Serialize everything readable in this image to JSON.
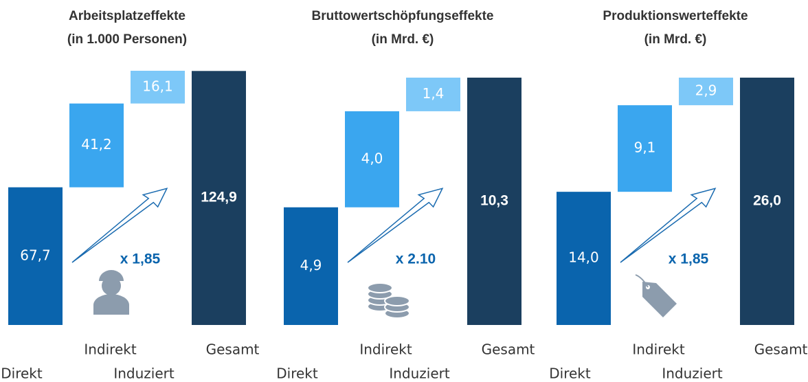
{
  "chart_data": [
    {
      "type": "waterfall",
      "title": "Arbeitsplatzeffekte",
      "subtitle": "(in 1.000 Personen)",
      "categories": [
        "Direkt",
        "Indirekt",
        "Induziert",
        "Gesamt"
      ],
      "values": [
        67.7,
        41.2,
        16.1,
        124.9
      ],
      "value_labels": [
        "67,7",
        "41,2",
        "16,1",
        "124,9"
      ],
      "colors": [
        "#0a64ad",
        "#3aa6ef",
        "#7dc8f8",
        "#1b3f5f"
      ],
      "annotation": "x 1,85"
    },
    {
      "type": "waterfall",
      "title": "Bruttowertschöpfungseffekte",
      "subtitle": "(in Mrd. €)",
      "categories": [
        "Direkt",
        "Indirekt",
        "Induziert",
        "Gesamt"
      ],
      "values": [
        4.9,
        4.0,
        1.4,
        10.3
      ],
      "value_labels": [
        "4,9",
        "4,0",
        "1,4",
        "10,3"
      ],
      "colors": [
        "#0a64ad",
        "#3aa6ef",
        "#7dc8f8",
        "#1b3f5f"
      ],
      "annotation": "x 2.10"
    },
    {
      "type": "waterfall",
      "title": "Produktionswerteffekte",
      "subtitle": "(in Mrd. €)",
      "categories": [
        "Direkt",
        "Indirekt",
        "Induziert",
        "Gesamt"
      ],
      "values": [
        14.0,
        9.1,
        2.9,
        26.0
      ],
      "value_labels": [
        "14,0",
        "9,1",
        "2,9",
        "26,0"
      ],
      "colors": [
        "#0a64ad",
        "#3aa6ef",
        "#7dc8f8",
        "#1b3f5f"
      ],
      "annotation": "x 1,85"
    }
  ]
}
